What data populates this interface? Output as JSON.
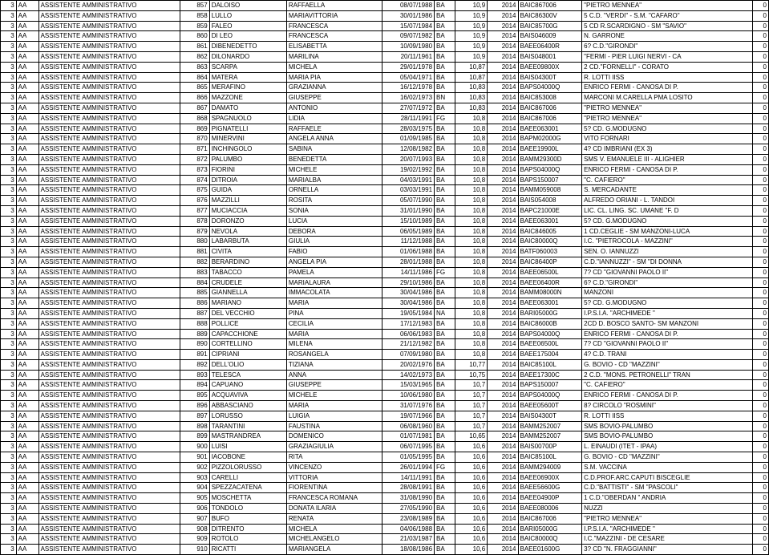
{
  "columns": [
    {
      "cls": "c0"
    },
    {
      "cls": "c1"
    },
    {
      "cls": "c2"
    },
    {
      "cls": "c3"
    },
    {
      "cls": "c4"
    },
    {
      "cls": "c5"
    },
    {
      "cls": "c6"
    },
    {
      "cls": "c7"
    },
    {
      "cls": "c8"
    },
    {
      "cls": "c9"
    },
    {
      "cls": "c10"
    },
    {
      "cls": "c11"
    },
    {
      "cls": "c12"
    }
  ],
  "rows": [
    [
      "3",
      "AA",
      "ASSISTENTE AMMINISTRATIVO",
      "857",
      "DALOISO",
      "RAFFAELLA",
      "08/07/1988",
      "BA",
      "10,9",
      "2014",
      "BAIC867006",
      "\"PIETRO MENNEA\"",
      "0"
    ],
    [
      "3",
      "AA",
      "ASSISTENTE AMMINISTRATIVO",
      "858",
      "LULLO",
      "MARIAVITTORIA",
      "30/01/1986",
      "BA",
      "10,9",
      "2014",
      "BAIC86300V",
      "5 C.D. \"VERDI\" - S.M. \"CAFARO\"",
      "0"
    ],
    [
      "3",
      "AA",
      "ASSISTENTE AMMINISTRATIVO",
      "859",
      "FALEO",
      "FRANCESCA",
      "15/07/1984",
      "BA",
      "10,9",
      "2014",
      "BAIC85700G",
      "5 CD R.SCARDIGNO - SM \"SAVIO\"",
      "0"
    ],
    [
      "3",
      "AA",
      "ASSISTENTE AMMINISTRATIVO",
      "860",
      "DI LEO",
      "FRANCESCA",
      "09/07/1982",
      "BA",
      "10,9",
      "2014",
      "BAIS046009",
      "N. GARRONE",
      "0"
    ],
    [
      "3",
      "AA",
      "ASSISTENTE AMMINISTRATIVO",
      "861",
      "DIBENEDETTO",
      "ELISABETTA",
      "10/09/1980",
      "BA",
      "10,9",
      "2014",
      "BAEE06400R",
      "6? C.D.\"GIRONDI\"",
      "0"
    ],
    [
      "3",
      "AA",
      "ASSISTENTE AMMINISTRATIVO",
      "862",
      "DILONARDO",
      "MARILINA",
      "20/11/1961",
      "BA",
      "10,9",
      "2014",
      "BAIS048001",
      "\"FERMI - PIER LUIGI NERVI - CA",
      "0"
    ],
    [
      "3",
      "AA",
      "ASSISTENTE AMMINISTRATIVO",
      "863",
      "SCARPA",
      "MICHELA",
      "29/01/1978",
      "BA",
      "10,87",
      "2014",
      "BAEE09800X",
      "2 CD.\"FORNELLI\" - CORATO",
      "0"
    ],
    [
      "3",
      "AA",
      "ASSISTENTE AMMINISTRATIVO",
      "864",
      "MATERA",
      "MARIA PIA",
      "05/04/1971",
      "BA",
      "10,87",
      "2014",
      "BAIS04300T",
      "R. LOTTI IISS",
      "0"
    ],
    [
      "3",
      "AA",
      "ASSISTENTE AMMINISTRATIVO",
      "865",
      "MERAFINO",
      "GRAZIANNA",
      "16/12/1978",
      "BA",
      "10,83",
      "2014",
      "BAPS04000Q",
      "ENRICO FERMI - CANOSA DI P.",
      "0"
    ],
    [
      "3",
      "AA",
      "ASSISTENTE AMMINISTRATIVO",
      "866",
      "MAZZONE",
      "GIUSEPPE",
      "16/02/1973",
      "BN",
      "10,83",
      "2014",
      "BAIC853008",
      "MARCONI  M.CARELLA PMA LOSITO",
      "0"
    ],
    [
      "3",
      "AA",
      "ASSISTENTE AMMINISTRATIVO",
      "867",
      "DAMATO",
      "ANTONIO",
      "27/07/1972",
      "BA",
      "10,83",
      "2014",
      "BAIC867006",
      "\"PIETRO MENNEA\"",
      "0"
    ],
    [
      "3",
      "AA",
      "ASSISTENTE AMMINISTRATIVO",
      "868",
      "SPAGNUOLO",
      "LIDIA",
      "28/11/1991",
      "FG",
      "10,8",
      "2014",
      "BAIC867006",
      "\"PIETRO MENNEA\"",
      "0"
    ],
    [
      "3",
      "AA",
      "ASSISTENTE AMMINISTRATIVO",
      "869",
      "PIGNATELLI",
      "RAFFAELE",
      "28/03/1975",
      "BA",
      "10,8",
      "2014",
      "BAEE063001",
      "5? CD. G.MODUGNO",
      "0"
    ],
    [
      "3",
      "AA",
      "ASSISTENTE AMMINISTRATIVO",
      "870",
      "MINERVINI",
      "ANGELA ANNA",
      "01/09/1985",
      "BA",
      "10,8",
      "2014",
      "BAPM02000G",
      "VITO FORNARI",
      "0"
    ],
    [
      "3",
      "AA",
      "ASSISTENTE AMMINISTRATIVO",
      "871",
      "INCHINGOLO",
      "SABINA",
      "12/08/1982",
      "BA",
      "10,8",
      "2014",
      "BAEE19900L",
      "4? CD IMBRIANI (EX 3)",
      "0"
    ],
    [
      "3",
      "AA",
      "ASSISTENTE AMMINISTRATIVO",
      "872",
      "PALUMBO",
      "BENEDETTA",
      "20/07/1993",
      "BA",
      "10,8",
      "2014",
      "BAMM29300D",
      "SMS V. EMANUELE III - ALIGHIER",
      "0"
    ],
    [
      "3",
      "AA",
      "ASSISTENTE AMMINISTRATIVO",
      "873",
      "FIORINI",
      "MICHELE",
      "19/02/1992",
      "BA",
      "10,8",
      "2014",
      "BAPS04000Q",
      "ENRICO FERMI - CANOSA DI P.",
      "0"
    ],
    [
      "3",
      "AA",
      "ASSISTENTE AMMINISTRATIVO",
      "874",
      "DITROIA",
      "MARIALBA",
      "04/03/1991",
      "BA",
      "10,8",
      "2014",
      "BAPS150007",
      "\"C. CAFIERO\"",
      "0"
    ],
    [
      "3",
      "AA",
      "ASSISTENTE AMMINISTRATIVO",
      "875",
      "GUIDA",
      "ORNELLA",
      "03/03/1991",
      "BA",
      "10,8",
      "2014",
      "BAMM059008",
      "S. MERCADANTE",
      "0"
    ],
    [
      "3",
      "AA",
      "ASSISTENTE AMMINISTRATIVO",
      "876",
      "MAZZILLI",
      "ROSITA",
      "05/07/1990",
      "BA",
      "10,8",
      "2014",
      "BAIS054008",
      "ALFREDO ORIANI - L. TANDOI",
      "0"
    ],
    [
      "3",
      "AA",
      "ASSISTENTE AMMINISTRATIVO",
      "877",
      "MUCIACCIA",
      "SONIA",
      "31/01/1990",
      "BA",
      "10,8",
      "2014",
      "BAPC21000E",
      "LIC. CL. LING. SC. UMANE \"F. D",
      "0"
    ],
    [
      "3",
      "AA",
      "ASSISTENTE AMMINISTRATIVO",
      "878",
      "DORONZO",
      "LUCIA",
      "15/10/1989",
      "BA",
      "10,8",
      "2014",
      "BAEE063001",
      "5? CD. G.MODUGNO",
      "0"
    ],
    [
      "3",
      "AA",
      "ASSISTENTE AMMINISTRATIVO",
      "879",
      "NEVOLA",
      "DEBORA",
      "06/05/1989",
      "BA",
      "10,8",
      "2014",
      "BAIC846005",
      "1 CD.CEGLIE - SM MANZONI-LUCA",
      "0"
    ],
    [
      "3",
      "AA",
      "ASSISTENTE AMMINISTRATIVO",
      "880",
      "LABARBUTA",
      "GIULIA",
      "11/12/1988",
      "BA",
      "10,8",
      "2014",
      "BAIC80000Q",
      "I.C. \"PIETROCOLA - MAZZINI\"",
      "0"
    ],
    [
      "3",
      "AA",
      "ASSISTENTE AMMINISTRATIVO",
      "881",
      "CIVITA",
      "FABIO",
      "01/06/1988",
      "BA",
      "10,8",
      "2014",
      "BATF060003",
      "SEN. O. IANNUZZI",
      "0"
    ],
    [
      "3",
      "AA",
      "ASSISTENTE AMMINISTRATIVO",
      "882",
      "BERARDINO",
      "ANGELA PIA",
      "28/01/1988",
      "BA",
      "10,8",
      "2014",
      "BAIC86400P",
      "C.D.\"IANNUZZI\" - SM \"DI DONNA",
      "0"
    ],
    [
      "3",
      "AA",
      "ASSISTENTE AMMINISTRATIVO",
      "883",
      "TABACCO",
      "PAMELA",
      "14/11/1986",
      "FG",
      "10,8",
      "2014",
      "BAEE06500L",
      "7? CD \"GIOVANNI PAOLO II\"",
      "0"
    ],
    [
      "3",
      "AA",
      "ASSISTENTE AMMINISTRATIVO",
      "884",
      "CRUDELE",
      "MARIALAURA",
      "29/10/1986",
      "BA",
      "10,8",
      "2014",
      "BAEE06400R",
      "6? C.D.\"GIRONDI\"",
      "0"
    ],
    [
      "3",
      "AA",
      "ASSISTENTE AMMINISTRATIVO",
      "885",
      "GIANNELLA",
      "IMMACOLATA",
      "30/04/1986",
      "BA",
      "10,8",
      "2014",
      "BAMM08000N",
      "MANZONI",
      "0"
    ],
    [
      "3",
      "AA",
      "ASSISTENTE AMMINISTRATIVO",
      "886",
      "MARIANO",
      "MARIA",
      "30/04/1986",
      "BA",
      "10,8",
      "2014",
      "BAEE063001",
      "5? CD. G.MODUGNO",
      "0"
    ],
    [
      "3",
      "AA",
      "ASSISTENTE AMMINISTRATIVO",
      "887",
      "DEL VECCHIO",
      "PINA",
      "19/05/1984",
      "NA",
      "10,8",
      "2014",
      "BARI05000G",
      "I.P.S.I.A.  \"ARCHIMEDE \"",
      "0"
    ],
    [
      "3",
      "AA",
      "ASSISTENTE AMMINISTRATIVO",
      "888",
      "POLLICE",
      "CECILIA",
      "17/12/1983",
      "BA",
      "10,8",
      "2014",
      "BAIC86000B",
      "2CD D. BOSCO SANTO- SM MANZONI",
      "0"
    ],
    [
      "3",
      "AA",
      "ASSISTENTE AMMINISTRATIVO",
      "889",
      "CAPACCHIONE",
      "MARIA",
      "06/06/1983",
      "BA",
      "10,8",
      "2014",
      "BAPS04000Q",
      "ENRICO FERMI - CANOSA DI P.",
      "0"
    ],
    [
      "3",
      "AA",
      "ASSISTENTE AMMINISTRATIVO",
      "890",
      "CORTELLINO",
      "MILENA",
      "21/12/1982",
      "BA",
      "10,8",
      "2014",
      "BAEE06500L",
      "7? CD \"GIOVANNI PAOLO II\"",
      "0"
    ],
    [
      "3",
      "AA",
      "ASSISTENTE AMMINISTRATIVO",
      "891",
      "CIPRIANI",
      "ROSANGELA",
      "07/09/1980",
      "BA",
      "10,8",
      "2014",
      "BAEE175004",
      "4? C.D. TRANI",
      "0"
    ],
    [
      "3",
      "AA",
      "ASSISTENTE AMMINISTRATIVO",
      "892",
      "DELL'OLIO",
      "TIZIANA",
      "20/02/1976",
      "BA",
      "10,77",
      "2014",
      "BAIC85100L",
      "G. BOVIO - CD \"MAZZINI\"",
      "0"
    ],
    [
      "3",
      "AA",
      "ASSISTENTE AMMINISTRATIVO",
      "893",
      "TELESCA",
      "ANNA",
      "14/02/1973",
      "BA",
      "10,75",
      "2014",
      "BAEE17300C",
      "2 C.D. \"MONS. PETRONELLI\" TRAN",
      "0"
    ],
    [
      "3",
      "AA",
      "ASSISTENTE AMMINISTRATIVO",
      "894",
      "CAPUANO",
      "GIUSEPPE",
      "15/03/1965",
      "BA",
      "10,7",
      "2014",
      "BAPS150007",
      "\"C. CAFIERO\"",
      "0"
    ],
    [
      "3",
      "AA",
      "ASSISTENTE AMMINISTRATIVO",
      "895",
      "ACQUAVIVA",
      "MICHELE",
      "10/06/1980",
      "BA",
      "10,7",
      "2014",
      "BAPS04000Q",
      "ENRICO FERMI - CANOSA DI P.",
      "0"
    ],
    [
      "3",
      "AA",
      "ASSISTENTE AMMINISTRATIVO",
      "896",
      "ABBASCIANO",
      "MARIA",
      "31/07/1976",
      "BA",
      "10,7",
      "2014",
      "BAEE05600T",
      "8? CIRCOLO \"ROSMINI\"",
      "0"
    ],
    [
      "3",
      "AA",
      "ASSISTENTE AMMINISTRATIVO",
      "897",
      "LORUSSO",
      "LUIGIA",
      "19/07/1966",
      "BA",
      "10,7",
      "2014",
      "BAIS04300T",
      "R. LOTTI IISS",
      "0"
    ],
    [
      "3",
      "AA",
      "ASSISTENTE AMMINISTRATIVO",
      "898",
      "TARANTINI",
      "FAUSTINA",
      "06/08/1960",
      "BA",
      "10,7",
      "2014",
      "BAMM252007",
      "SMS BOVIO-PALUMBO",
      "0"
    ],
    [
      "3",
      "AA",
      "ASSISTENTE AMMINISTRATIVO",
      "899",
      "MASTRANDREA",
      "DOMENICO",
      "01/07/1981",
      "BA",
      "10,65",
      "2014",
      "BAMM252007",
      "SMS BOVIO-PALUMBO",
      "0"
    ],
    [
      "3",
      "AA",
      "ASSISTENTE AMMINISTRATIVO",
      "900",
      "LUISI",
      "GRAZIAGIULIA",
      "06/07/1995",
      "BA",
      "10,6",
      "2014",
      "BAIS00700P",
      "L. EINAUDI (ITET - IPAA)",
      "0"
    ],
    [
      "3",
      "AA",
      "ASSISTENTE AMMINISTRATIVO",
      "901",
      "IACOBONE",
      "RITA",
      "01/05/1995",
      "BA",
      "10,6",
      "2014",
      "BAIC85100L",
      "G. BOVIO - CD \"MAZZINI\"",
      "0"
    ],
    [
      "3",
      "AA",
      "ASSISTENTE AMMINISTRATIVO",
      "902",
      "PIZZOLORUSSO",
      "VINCENZO",
      "26/01/1994",
      "FG",
      "10,6",
      "2014",
      "BAMM294009",
      "S.M. VACCINA",
      "0"
    ],
    [
      "3",
      "AA",
      "ASSISTENTE AMMINISTRATIVO",
      "903",
      "CARELLI",
      "VITTORIA",
      "14/11/1991",
      "BA",
      "10,6",
      "2014",
      "BAEE06900X",
      "C.D.PROF.ARC.CAPUTI BISCEGLIE",
      "0"
    ],
    [
      "3",
      "AA",
      "ASSISTENTE AMMINISTRATIVO",
      "904",
      "SPEZZACATENA",
      "FIORENTINA",
      "28/08/1991",
      "BA",
      "10,6",
      "2014",
      "BAEE56600G",
      "C.D.\"BATTISTI\" - SM \"PASCOLI\"",
      "0"
    ],
    [
      "3",
      "AA",
      "ASSISTENTE AMMINISTRATIVO",
      "905",
      "MOSCHETTA",
      "FRANCESCA ROMANA",
      "31/08/1990",
      "BA",
      "10,6",
      "2014",
      "BAEE04900P",
      "1 C.D.\"OBERDAN \" ANDRIA",
      "0"
    ],
    [
      "3",
      "AA",
      "ASSISTENTE AMMINISTRATIVO",
      "906",
      "TONDOLO",
      "DONATA ILARIA",
      "27/05/1990",
      "BA",
      "10,6",
      "2014",
      "BAEE080006",
      "NUZZI",
      "0"
    ],
    [
      "3",
      "AA",
      "ASSISTENTE AMMINISTRATIVO",
      "907",
      "BUFO",
      "RENATA",
      "23/08/1989",
      "BA",
      "10,6",
      "2014",
      "BAIC867006",
      "\"PIETRO MENNEA\"",
      "0"
    ],
    [
      "3",
      "AA",
      "ASSISTENTE AMMINISTRATIVO",
      "908",
      "DITRENTO",
      "MICHELA",
      "04/06/1988",
      "BA",
      "10,6",
      "2014",
      "BARI05000G",
      "I.P.S.I.A.  \"ARCHIMEDE \"",
      "0"
    ],
    [
      "3",
      "AA",
      "ASSISTENTE AMMINISTRATIVO",
      "909",
      "ROTOLO",
      "MICHELANGELO",
      "21/03/1987",
      "BA",
      "10,6",
      "2014",
      "BAIC80000Q",
      "I.C.\"MAZZINI - DE CESARE",
      "0"
    ],
    [
      "3",
      "AA",
      "ASSISTENTE AMMINISTRATIVO",
      "910",
      "RICATTI",
      "MARIANGELA",
      "18/08/1986",
      "BA",
      "10,6",
      "2014",
      "BAEE01600G",
      "3? CD \"N. FRAGGIANNI\"",
      "0"
    ]
  ]
}
